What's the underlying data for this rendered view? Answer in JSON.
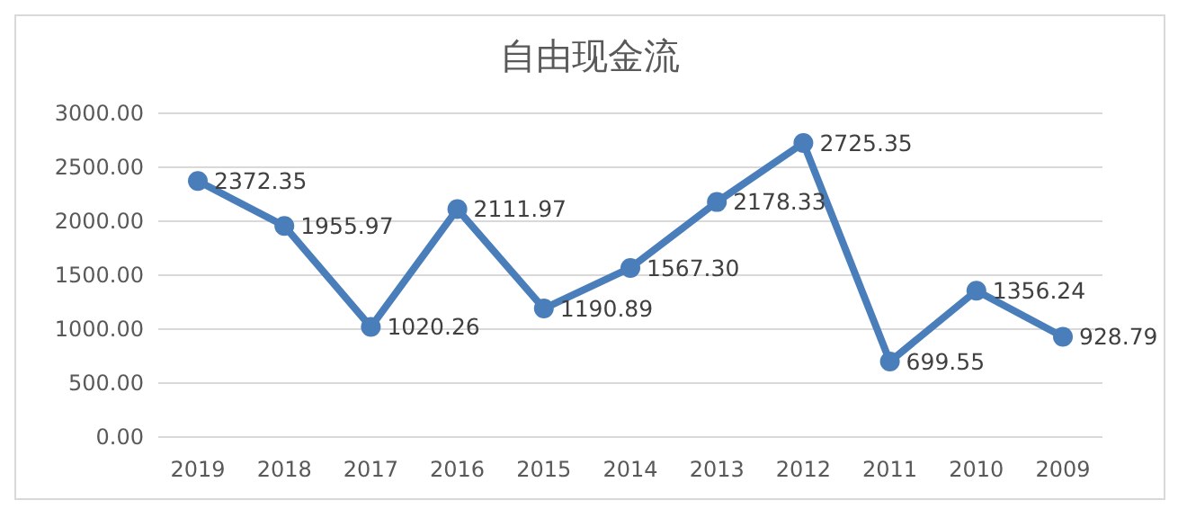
{
  "chart_data": {
    "type": "line",
    "title": "自由现金流",
    "categories": [
      "2019",
      "2018",
      "2017",
      "2016",
      "2015",
      "2014",
      "2013",
      "2012",
      "2011",
      "2010",
      "2009"
    ],
    "series": [
      {
        "color": "#4a7ebb",
        "values": [
          2372.35,
          1955.97,
          1020.26,
          2111.97,
          1190.89,
          1567.3,
          2178.33,
          2725.35,
          699.55,
          1356.24,
          928.79
        ]
      }
    ],
    "value_labels": [
      "2372.35",
      "1955.97",
      "1020.26",
      "2111.97",
      "1190.89",
      "1567.30",
      "2178.33",
      "2725.35",
      "699.55",
      "1356.24",
      "928.79"
    ],
    "ylim": [
      0,
      3000
    ],
    "yticks": [
      {
        "value": 0,
        "label": "0.00"
      },
      {
        "value": 500,
        "label": "500.00"
      },
      {
        "value": 1000,
        "label": "1000.00"
      },
      {
        "value": 1500,
        "label": "1500.00"
      },
      {
        "value": 2000,
        "label": "2000.00"
      },
      {
        "value": 2500,
        "label": "2500.00"
      },
      {
        "value": 3000,
        "label": "3000.00"
      }
    ],
    "grid": "y",
    "marker": "circle",
    "line_style": "solid"
  }
}
